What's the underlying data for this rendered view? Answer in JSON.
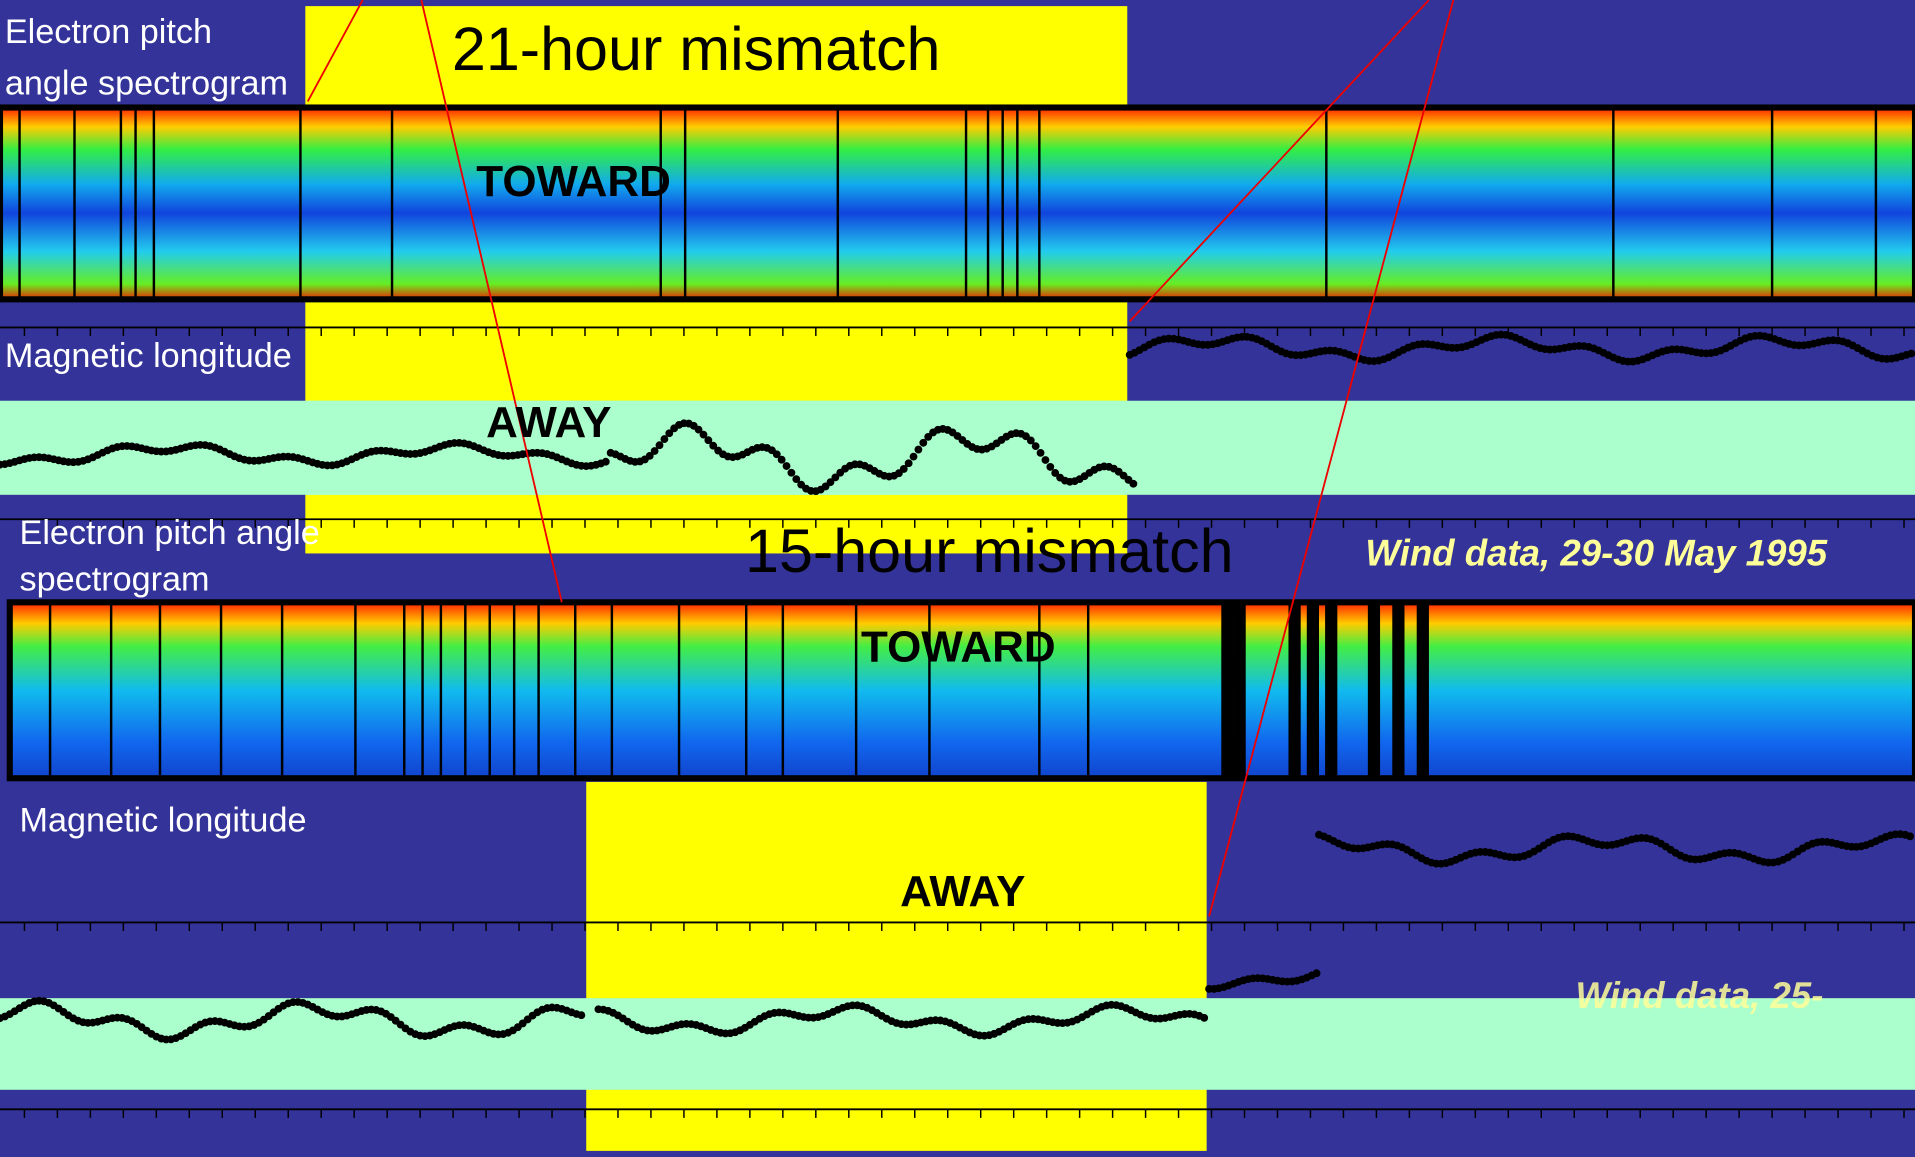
{
  "panels": [
    {
      "label_lines": [
        "Electron pitch",
        "angle  spectrogram"
      ],
      "mismatch": "21-hour mismatch",
      "toward": "TOWARD",
      "longitude_label": "Magnetic longitude",
      "away": "AWAY",
      "caption": "Wind data, 29-30 May 1995"
    },
    {
      "label_lines": [
        "Electron pitch angle",
        "spectrogram"
      ],
      "mismatch": "15-hour mismatch",
      "toward": "TOWARD",
      "longitude_label": "Magnetic longitude",
      "away": "AWAY",
      "caption": "Wind data, 25-"
    }
  ]
}
